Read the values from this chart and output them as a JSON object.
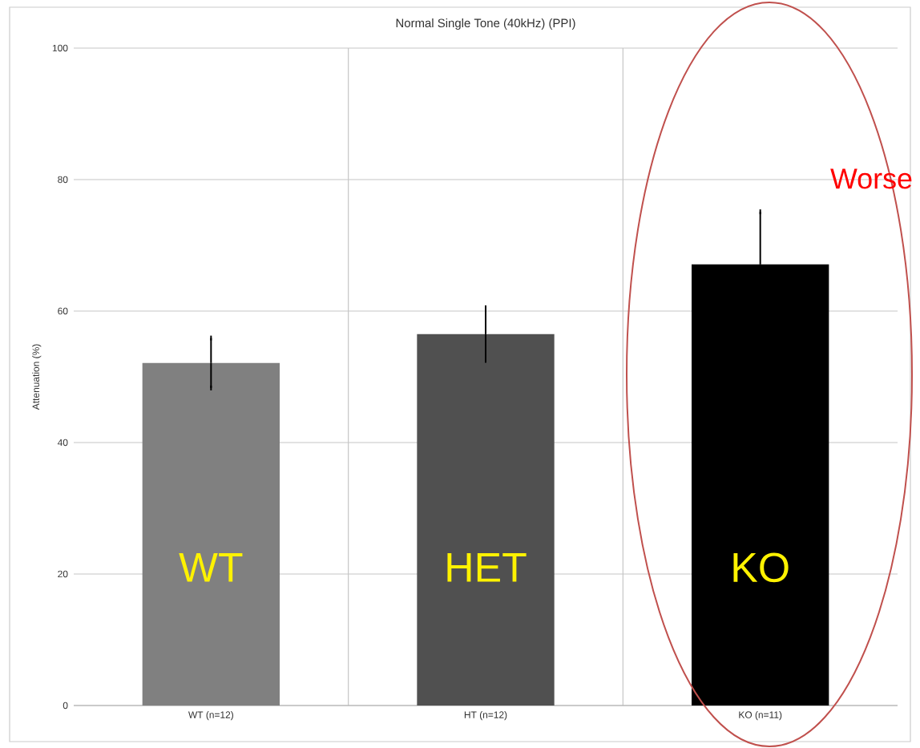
{
  "chart_data": {
    "type": "bar",
    "title": "Normal Single Tone (40kHz) (PPI)",
    "ylabel": "Attenuation (%)",
    "categories": [
      "WT (n=12)",
      "HT (n=12)",
      "KO (n=11)"
    ],
    "values": [
      52.1,
      56.5,
      67.1
    ],
    "errors": [
      3.8,
      4.0,
      8.0
    ],
    "colors": [
      "#808080",
      "#505050",
      "#000000"
    ],
    "ylim": [
      0,
      100
    ],
    "yticks": [
      0,
      20,
      40,
      60,
      80,
      100
    ],
    "grid": true,
    "annotations": [
      "WT",
      "HET",
      "KO",
      "Worse"
    ]
  }
}
